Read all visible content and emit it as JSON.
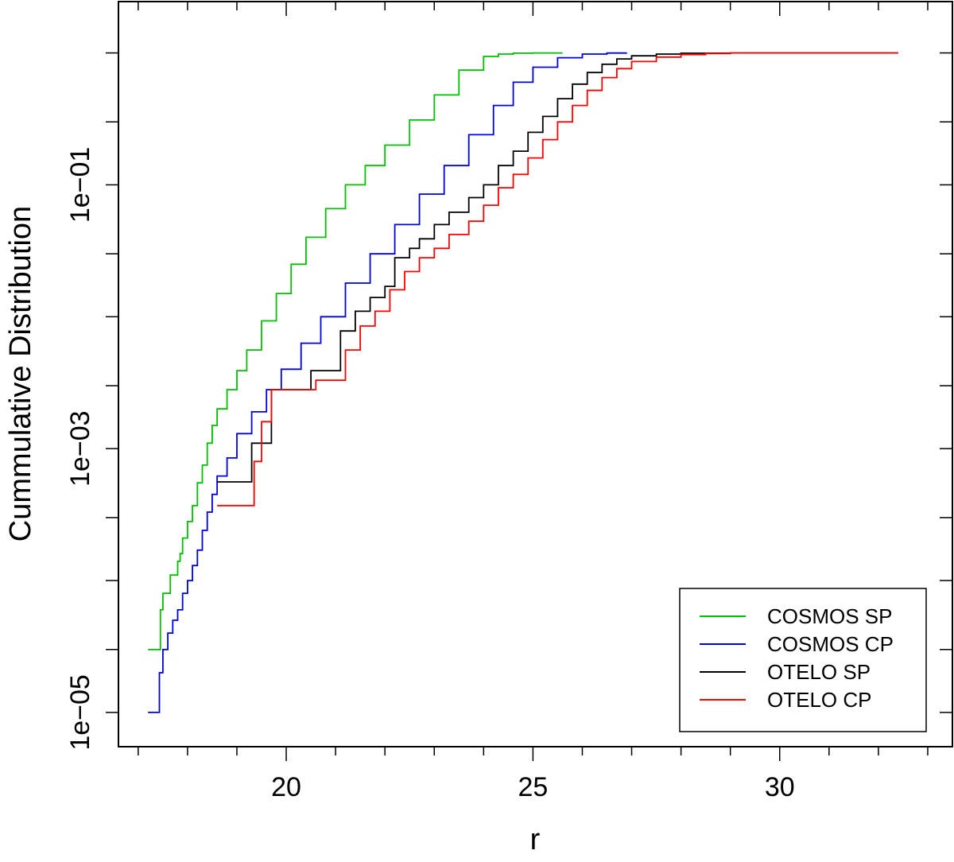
{
  "chart_data": {
    "type": "line",
    "title": "",
    "xlabel": "r",
    "ylabel": "Cummulative Distribution",
    "xlim": [
      16.6,
      33.5
    ],
    "ylim": [
      5.5e-06,
      2.45
    ],
    "yscale": "log",
    "grid": false,
    "legend_position": "bottom-right",
    "x_ticks_major": [
      20,
      25,
      30
    ],
    "x_ticks_minor": [
      17,
      18,
      19,
      21,
      22,
      23,
      24,
      26,
      27,
      28,
      29,
      31,
      32,
      33
    ],
    "y_ticks_labeled": [
      {
        "value": 1e-05,
        "label": "1e−05"
      },
      {
        "value": 0.001,
        "label": "1e−03"
      },
      {
        "value": 0.1,
        "label": "1e−01"
      }
    ],
    "y_ticks_unlabeled": [
      3e-05,
      0.0001,
      0.0003,
      0.003,
      0.01,
      0.03,
      0.3,
      1
    ],
    "series": [
      {
        "name": "COSMOS SP",
        "color": "#00c000",
        "step": true,
        "x": [
          17.2,
          17.4,
          17.45,
          17.5,
          17.6,
          17.65,
          17.75,
          17.8,
          17.85,
          17.9,
          18.0,
          18.1,
          18.2,
          18.3,
          18.4,
          18.5,
          18.6,
          18.8,
          19.0,
          19.2,
          19.5,
          19.8,
          20.1,
          20.4,
          20.8,
          21.2,
          21.6,
          22.0,
          22.5,
          23.0,
          23.5,
          24.0,
          24.3,
          24.6,
          25.0,
          25.3,
          25.6
        ],
        "y": [
          3e-05,
          3e-05,
          6e-05,
          8e-05,
          8e-05,
          0.00011,
          0.00011,
          0.00014,
          0.00016,
          0.00021,
          0.00028,
          0.00037,
          0.00055,
          0.00075,
          0.0011,
          0.0015,
          0.002,
          0.0028,
          0.0039,
          0.0056,
          0.0093,
          0.015,
          0.025,
          0.04,
          0.066,
          0.1,
          0.14,
          0.2,
          0.31,
          0.48,
          0.74,
          0.94,
          0.98,
          0.995,
          1.0,
          1.0,
          1.0
        ]
      },
      {
        "name": "COSMOS CP",
        "color": "#0000e0",
        "step": true,
        "x": [
          17.2,
          17.38,
          17.43,
          17.5,
          17.6,
          17.7,
          17.8,
          17.9,
          18.0,
          18.1,
          18.2,
          18.3,
          18.4,
          18.5,
          18.6,
          18.8,
          19.0,
          19.3,
          19.6,
          19.9,
          20.3,
          20.7,
          21.2,
          21.7,
          22.2,
          22.7,
          23.2,
          23.7,
          24.2,
          24.6,
          25.0,
          25.5,
          26.0,
          26.5,
          26.9
        ],
        "y": [
          1e-05,
          1e-05,
          2e-05,
          3e-05,
          4e-05,
          5e-05,
          6e-05,
          8e-05,
          0.0001,
          0.00013,
          0.00017,
          0.00024,
          0.00033,
          0.00045,
          0.00062,
          0.00085,
          0.0013,
          0.0019,
          0.0028,
          0.004,
          0.0063,
          0.01,
          0.018,
          0.03,
          0.05,
          0.085,
          0.14,
          0.24,
          0.4,
          0.6,
          0.78,
          0.92,
          0.98,
          0.998,
          1.0
        ]
      },
      {
        "name": "OTELO SP",
        "color": "#000000",
        "step": true,
        "x": [
          18.6,
          19.2,
          19.3,
          19.5,
          19.7,
          20.3,
          20.5,
          20.9,
          21.1,
          21.4,
          21.7,
          22.0,
          22.2,
          22.5,
          22.7,
          23.0,
          23.3,
          23.7,
          24.0,
          24.3,
          24.6,
          24.9,
          25.2,
          25.5,
          25.8,
          26.1,
          26.4,
          26.7,
          27.0,
          27.5,
          28.0,
          29.0,
          30.0,
          31.0,
          32.4
        ],
        "y": [
          0.00056,
          0.00056,
          0.0011,
          0.0011,
          0.0028,
          0.0028,
          0.0039,
          0.0039,
          0.0078,
          0.011,
          0.014,
          0.017,
          0.028,
          0.033,
          0.039,
          0.05,
          0.062,
          0.08,
          0.1,
          0.14,
          0.18,
          0.25,
          0.33,
          0.45,
          0.58,
          0.71,
          0.82,
          0.9,
          0.95,
          0.98,
          0.995,
          1.0,
          1.0,
          1.0,
          1.0
        ]
      },
      {
        "name": "OTELO CP",
        "color": "#ff0000",
        "step": true,
        "x": [
          18.6,
          19.3,
          19.35,
          19.5,
          19.7,
          20.5,
          20.6,
          20.9,
          21.2,
          21.5,
          21.8,
          22.1,
          22.4,
          22.7,
          23.0,
          23.3,
          23.7,
          24.0,
          24.3,
          24.6,
          24.9,
          25.2,
          25.5,
          25.8,
          26.1,
          26.4,
          26.7,
          27.0,
          27.5,
          28.0,
          28.5,
          29.0,
          30.0,
          31.0,
          32.4
        ],
        "y": [
          0.00037,
          0.00037,
          0.0008,
          0.0016,
          0.0028,
          0.0028,
          0.0033,
          0.0033,
          0.0056,
          0.0085,
          0.011,
          0.016,
          0.022,
          0.028,
          0.033,
          0.042,
          0.053,
          0.07,
          0.095,
          0.12,
          0.16,
          0.22,
          0.3,
          0.4,
          0.52,
          0.65,
          0.76,
          0.86,
          0.93,
          0.97,
          0.99,
          1.0,
          1.0,
          1.0,
          1.0
        ]
      }
    ]
  }
}
